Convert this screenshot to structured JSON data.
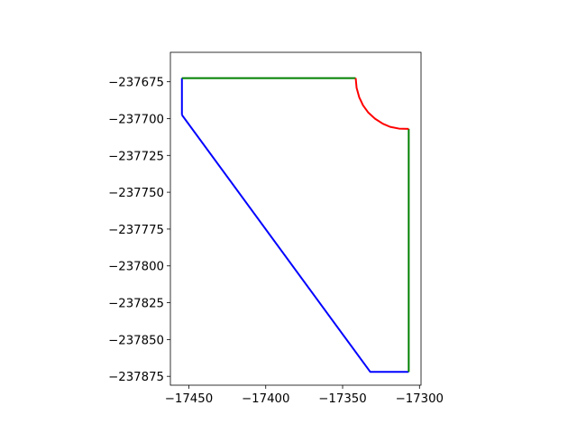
{
  "chart_data": {
    "type": "line",
    "title": "",
    "xlabel": "",
    "ylabel": "",
    "xlim": [
      -17462,
      -17299
    ],
    "ylim": [
      -237881,
      -237655
    ],
    "grid": false,
    "legend": "none",
    "x_ticks": [
      {
        "value": -17450,
        "label": "−17450"
      },
      {
        "value": -17400,
        "label": "−17400"
      },
      {
        "value": -17350,
        "label": "−17350"
      },
      {
        "value": -17300,
        "label": "−17300"
      }
    ],
    "y_ticks": [
      {
        "value": -237675,
        "label": "−237675"
      },
      {
        "value": -237700,
        "label": "−237700"
      },
      {
        "value": -237725,
        "label": "−237725"
      },
      {
        "value": -237750,
        "label": "−237750"
      },
      {
        "value": -237775,
        "label": "−237775"
      },
      {
        "value": -237800,
        "label": "−237800"
      },
      {
        "value": -237825,
        "label": "−237825"
      },
      {
        "value": -237850,
        "label": "−237850"
      },
      {
        "value": -237875,
        "label": "−237875"
      }
    ],
    "series": [
      {
        "color": "#0000ff",
        "points": [
          [
            -17454.5,
            -237697.5
          ],
          [
            -17454.5,
            -237672.5
          ]
        ]
      },
      {
        "color": "#0000ff",
        "points": [
          [
            -17454.5,
            -237697.5
          ],
          [
            -17332,
            -237872
          ],
          [
            -17307,
            -237872
          ]
        ]
      },
      {
        "color": "#008000",
        "points": [
          [
            -17454.5,
            -237672.5
          ],
          [
            -17341.5,
            -237672.5
          ]
        ]
      },
      {
        "color": "#008000",
        "points": [
          [
            -17307,
            -237707
          ],
          [
            -17307,
            -237872
          ]
        ]
      },
      {
        "color": "#ff0000",
        "points": [
          [
            -17341.5,
            -237672.5
          ],
          [
            -17340.9,
            -237679.1
          ],
          [
            -17339.2,
            -237685.5
          ],
          [
            -17336.7,
            -237691.0
          ],
          [
            -17333.3,
            -237695.9
          ],
          [
            -17328.9,
            -237700.1
          ],
          [
            -17323.8,
            -237703.5
          ],
          [
            -17319.1,
            -237705.6
          ],
          [
            -17313.3,
            -237706.8
          ],
          [
            -17307.0,
            -237707.0
          ]
        ]
      }
    ]
  }
}
